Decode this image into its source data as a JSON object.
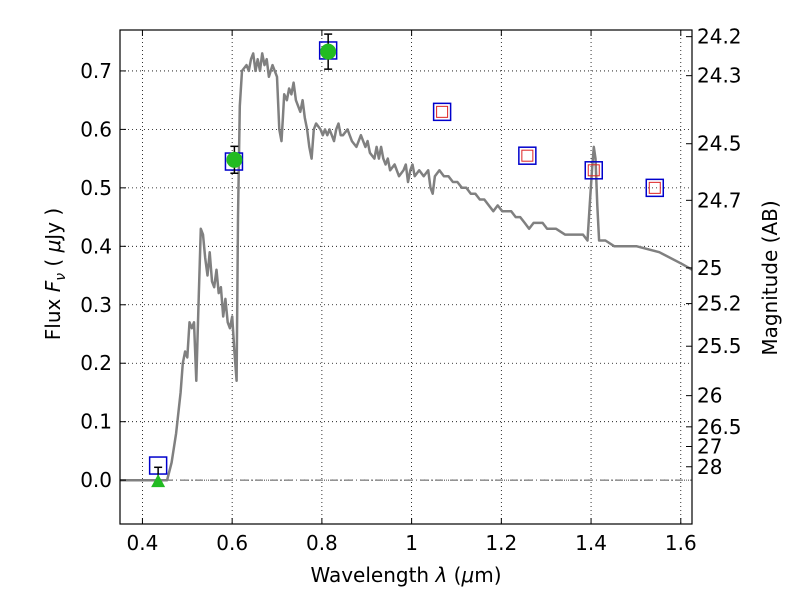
{
  "chart_data": {
    "type": "line",
    "xlabel": "Wavelength  λ (μm)",
    "ylabel": "Flux  F_ν  ( μJy )",
    "ylabel_parts": {
      "prefix": "Flux  ",
      "var": "F",
      "sub": "ν",
      "open": "  ( ",
      "mu": "μ",
      "unit": "Jy )"
    },
    "xlabel_parts": {
      "prefix": "Wavelength  ",
      "lambda": "λ",
      "open": " (",
      "mu": "μ",
      "unit": "m)"
    },
    "ylabel_right": "Magnitude (AB)",
    "xlim": [
      0.35,
      1.625
    ],
    "ylim": [
      -0.075,
      0.77
    ],
    "x_ticks": [
      0.4,
      0.6,
      0.8,
      1.0,
      1.2,
      1.4,
      1.6
    ],
    "x_tick_labels": [
      "0.4",
      "0.6",
      "0.8",
      "1",
      "1.2",
      "1.4",
      "1.6"
    ],
    "y_ticks": [
      0.0,
      0.1,
      0.2,
      0.3,
      0.4,
      0.5,
      0.6,
      0.7
    ],
    "y_tick_labels": [
      "0.0",
      "0.1",
      "0.2",
      "0.3",
      "0.4",
      "0.5",
      "0.6",
      "0.7"
    ],
    "mag_ticks": [
      24.2,
      24.3,
      24.5,
      24.7,
      25,
      25.2,
      25.5,
      26,
      26.5,
      27,
      28
    ],
    "mag_tick_labels": [
      "24.2",
      "24.3",
      "24.5",
      "24.7",
      "25",
      "25.2",
      "25.5",
      "26",
      "26.5",
      "27",
      "28"
    ],
    "grid": true,
    "colors": {
      "sed_line": "#808080",
      "model_box": "#0000cc",
      "model_inner": "#dd2222",
      "detection": "#22bb22",
      "errorbar": "#000000",
      "zero_line": "#555555"
    },
    "series": [
      {
        "kind": "line",
        "points": [
          [
            0.35,
            0.0
          ],
          [
            0.455,
            0.0
          ],
          [
            0.465,
            0.03
          ],
          [
            0.475,
            0.08
          ],
          [
            0.485,
            0.15
          ],
          [
            0.49,
            0.2
          ],
          [
            0.495,
            0.22
          ],
          [
            0.5,
            0.21
          ],
          [
            0.505,
            0.27
          ],
          [
            0.51,
            0.26
          ],
          [
            0.515,
            0.27
          ],
          [
            0.52,
            0.17
          ],
          [
            0.525,
            0.3
          ],
          [
            0.53,
            0.43
          ],
          [
            0.535,
            0.42
          ],
          [
            0.54,
            0.38
          ],
          [
            0.545,
            0.35
          ],
          [
            0.55,
            0.39
          ],
          [
            0.555,
            0.34
          ],
          [
            0.56,
            0.33
          ],
          [
            0.565,
            0.36
          ],
          [
            0.57,
            0.32
          ],
          [
            0.575,
            0.33
          ],
          [
            0.58,
            0.28
          ],
          [
            0.585,
            0.31
          ],
          [
            0.59,
            0.27
          ],
          [
            0.595,
            0.26
          ],
          [
            0.6,
            0.28
          ],
          [
            0.605,
            0.22
          ],
          [
            0.61,
            0.17
          ],
          [
            0.613,
            0.45
          ],
          [
            0.617,
            0.64
          ],
          [
            0.622,
            0.7
          ],
          [
            0.632,
            0.71
          ],
          [
            0.637,
            0.7
          ],
          [
            0.642,
            0.72
          ],
          [
            0.647,
            0.73
          ],
          [
            0.652,
            0.7
          ],
          [
            0.657,
            0.72
          ],
          [
            0.662,
            0.7
          ],
          [
            0.667,
            0.73
          ],
          [
            0.672,
            0.71
          ],
          [
            0.677,
            0.72
          ],
          [
            0.682,
            0.69
          ],
          [
            0.69,
            0.71
          ],
          [
            0.7,
            0.69
          ],
          [
            0.705,
            0.6
          ],
          [
            0.71,
            0.58
          ],
          [
            0.713,
            0.62
          ],
          [
            0.716,
            0.66
          ],
          [
            0.722,
            0.65
          ],
          [
            0.727,
            0.67
          ],
          [
            0.732,
            0.66
          ],
          [
            0.737,
            0.68
          ],
          [
            0.742,
            0.65
          ],
          [
            0.752,
            0.63
          ],
          [
            0.757,
            0.65
          ],
          [
            0.762,
            0.62
          ],
          [
            0.767,
            0.6
          ],
          [
            0.772,
            0.57
          ],
          [
            0.777,
            0.55
          ],
          [
            0.782,
            0.6
          ],
          [
            0.787,
            0.61
          ],
          [
            0.797,
            0.6
          ],
          [
            0.802,
            0.59
          ],
          [
            0.807,
            0.6
          ],
          [
            0.812,
            0.59
          ],
          [
            0.817,
            0.6
          ],
          [
            0.822,
            0.59
          ],
          [
            0.827,
            0.58
          ],
          [
            0.832,
            0.6
          ],
          [
            0.837,
            0.61
          ],
          [
            0.842,
            0.59
          ],
          [
            0.847,
            0.59
          ],
          [
            0.857,
            0.6
          ],
          [
            0.867,
            0.58
          ],
          [
            0.877,
            0.57
          ],
          [
            0.887,
            0.59
          ],
          [
            0.897,
            0.57
          ],
          [
            0.902,
            0.58
          ],
          [
            0.907,
            0.56
          ],
          [
            0.917,
            0.55
          ],
          [
            0.922,
            0.57
          ],
          [
            0.927,
            0.55
          ],
          [
            0.932,
            0.57
          ],
          [
            0.937,
            0.55
          ],
          [
            0.942,
            0.54
          ],
          [
            0.947,
            0.55
          ],
          [
            0.952,
            0.53
          ],
          [
            0.962,
            0.54
          ],
          [
            0.972,
            0.52
          ],
          [
            0.982,
            0.53
          ],
          [
            0.987,
            0.54
          ],
          [
            0.992,
            0.51
          ],
          [
            0.997,
            0.53
          ],
          [
            1.002,
            0.54
          ],
          [
            1.007,
            0.52
          ],
          [
            1.017,
            0.53
          ],
          [
            1.027,
            0.52
          ],
          [
            1.037,
            0.53
          ],
          [
            1.042,
            0.5
          ],
          [
            1.047,
            0.49
          ],
          [
            1.052,
            0.52
          ],
          [
            1.062,
            0.53
          ],
          [
            1.072,
            0.52
          ],
          [
            1.082,
            0.52
          ],
          [
            1.092,
            0.51
          ],
          [
            1.102,
            0.51
          ],
          [
            1.112,
            0.5
          ],
          [
            1.122,
            0.5
          ],
          [
            1.132,
            0.49
          ],
          [
            1.142,
            0.49
          ],
          [
            1.152,
            0.48
          ],
          [
            1.162,
            0.48
          ],
          [
            1.172,
            0.47
          ],
          [
            1.182,
            0.46
          ],
          [
            1.192,
            0.47
          ],
          [
            1.202,
            0.46
          ],
          [
            1.212,
            0.46
          ],
          [
            1.222,
            0.46
          ],
          [
            1.232,
            0.45
          ],
          [
            1.242,
            0.45
          ],
          [
            1.252,
            0.44
          ],
          [
            1.262,
            0.43
          ],
          [
            1.272,
            0.44
          ],
          [
            1.282,
            0.44
          ],
          [
            1.292,
            0.44
          ],
          [
            1.302,
            0.43
          ],
          [
            1.322,
            0.43
          ],
          [
            1.342,
            0.42
          ],
          [
            1.362,
            0.42
          ],
          [
            1.382,
            0.42
          ],
          [
            1.392,
            0.41
          ],
          [
            1.397,
            0.47
          ],
          [
            1.402,
            0.53
          ],
          [
            1.406,
            0.57
          ],
          [
            1.41,
            0.55
          ],
          [
            1.414,
            0.47
          ],
          [
            1.418,
            0.41
          ],
          [
            1.432,
            0.41
          ],
          [
            1.452,
            0.4
          ],
          [
            1.472,
            0.4
          ],
          [
            1.502,
            0.4
          ],
          [
            1.552,
            0.39
          ],
          [
            1.602,
            0.37
          ],
          [
            1.625,
            0.36
          ]
        ]
      },
      {
        "kind": "model_boxes",
        "points": [
          [
            0.435,
            0.025
          ],
          [
            0.604,
            0.545
          ],
          [
            0.814,
            0.735
          ],
          [
            1.068,
            0.63
          ],
          [
            1.258,
            0.555
          ],
          [
            1.406,
            0.53
          ],
          [
            1.542,
            0.5
          ]
        ],
        "inner_points": [
          [
            1.068,
            0.63
          ],
          [
            1.258,
            0.555
          ],
          [
            1.406,
            0.53
          ],
          [
            1.542,
            0.5
          ]
        ]
      },
      {
        "kind": "detections",
        "points": [
          {
            "x": 0.605,
            "y": 0.548,
            "err": 0.023
          },
          {
            "x": 0.814,
            "y": 0.733,
            "err": 0.03
          }
        ]
      },
      {
        "kind": "upper_limits",
        "points": [
          {
            "x": 0.435,
            "y": 0.0,
            "err": 0.022
          }
        ]
      }
    ]
  }
}
